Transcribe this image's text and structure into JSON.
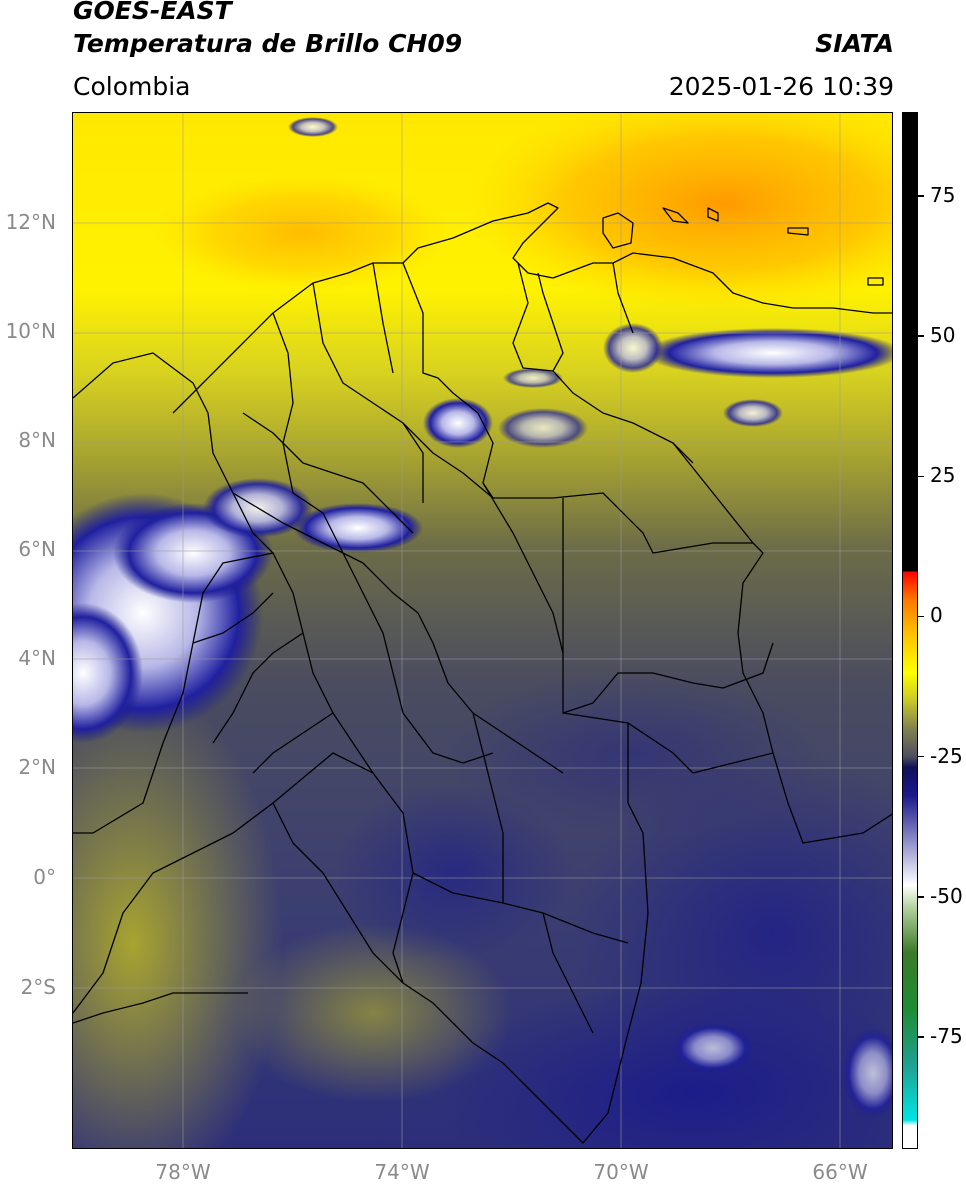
{
  "header": {
    "satellite": "GOES-EAST",
    "product": "Temperatura de Brillo CH09",
    "region": "Colombia",
    "source": "SIATA",
    "datetime": "2025-01-26 10:39"
  },
  "map": {
    "lat_labels": [
      "12°N",
      "10°N",
      "8°N",
      "6°N",
      "4°N",
      "2°N",
      "0°",
      "2°S"
    ],
    "lon_labels": [
      "78°W",
      "74°W",
      "70°W",
      "66°W"
    ],
    "colors": {
      "very_cold": "#1a1a8c",
      "cold": "#3c3f70",
      "mid": "#6b6b40",
      "olive": "#b4b428",
      "warm": "#ffee00",
      "hot": "#ffa000"
    }
  },
  "colorbar": {
    "labels": [
      "75",
      "50",
      "25",
      "0",
      "-25",
      "-50",
      "-75"
    ],
    "values": [
      75,
      50,
      25,
      0,
      -25,
      -50,
      -75
    ],
    "range": [
      -95,
      90
    ],
    "stops": [
      {
        "v": -95,
        "c": "#ffffff"
      },
      {
        "v": -91,
        "c": "#ffffff"
      },
      {
        "v": -90,
        "c": "#00e5e5"
      },
      {
        "v": -80,
        "c": "#20a090"
      },
      {
        "v": -70,
        "c": "#1e8c32"
      },
      {
        "v": -60,
        "c": "#3c7a28"
      },
      {
        "v": -52,
        "c": "#b4d2a0"
      },
      {
        "v": -48,
        "c": "#ffffff"
      },
      {
        "v": -40,
        "c": "#8c8cc8"
      },
      {
        "v": -32,
        "c": "#1a1a8c"
      },
      {
        "v": -27,
        "c": "#10105a"
      },
      {
        "v": -25,
        "c": "#505060"
      },
      {
        "v": -20,
        "c": "#828250"
      },
      {
        "v": -15,
        "c": "#c8c828"
      },
      {
        "v": -10,
        "c": "#ffff00"
      },
      {
        "v": -3,
        "c": "#ffc000"
      },
      {
        "v": 3,
        "c": "#ff7800"
      },
      {
        "v": 8,
        "c": "#ff0000"
      },
      {
        "v": 8.1,
        "c": "#000000"
      },
      {
        "v": 90,
        "c": "#000000"
      }
    ]
  }
}
